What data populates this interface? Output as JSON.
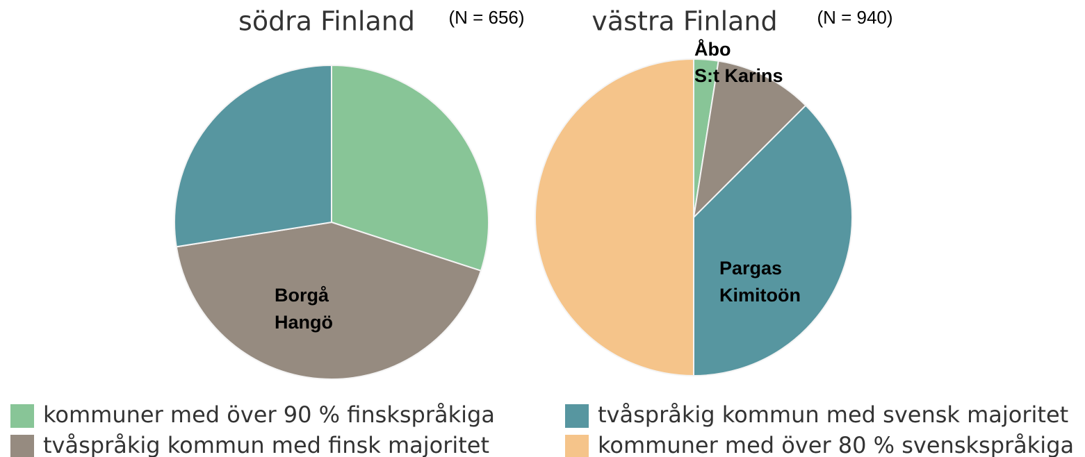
{
  "chart_data": [
    {
      "type": "pie",
      "title": "södra Finland",
      "note": "(N = 656)",
      "categories": [
        "kommuner med över 90 % finskspråkiga",
        "tvåspråkig kommun med finsk majoritet",
        "tvåspråkig kommun med svensk majoritet",
        "kommuner med över 80 % svenskspråkiga"
      ],
      "values": [
        30,
        42.5,
        27.5,
        0
      ],
      "colors": [
        "#88c597",
        "#968b80",
        "#5796a0",
        "#f5c48a"
      ],
      "annotations": [
        "Borgå",
        "Hangö"
      ]
    },
    {
      "type": "pie",
      "title": "västra Finland",
      "note": "(N = 940)",
      "categories": [
        "kommuner med över 90 % finskspråkiga",
        "tvåspråkig kommun med finsk majoritet",
        "tvåspråkig kommun med svensk majoritet",
        "kommuner med över 80 % svenskspråkiga"
      ],
      "values": [
        2.5,
        10,
        37.5,
        50
      ],
      "colors": [
        "#88c597",
        "#968b80",
        "#5796a0",
        "#f5c48a"
      ],
      "annotations": [
        "Åbo",
        "S:t Karins",
        "Pargas",
        "Kimitoön"
      ]
    }
  ]
}
